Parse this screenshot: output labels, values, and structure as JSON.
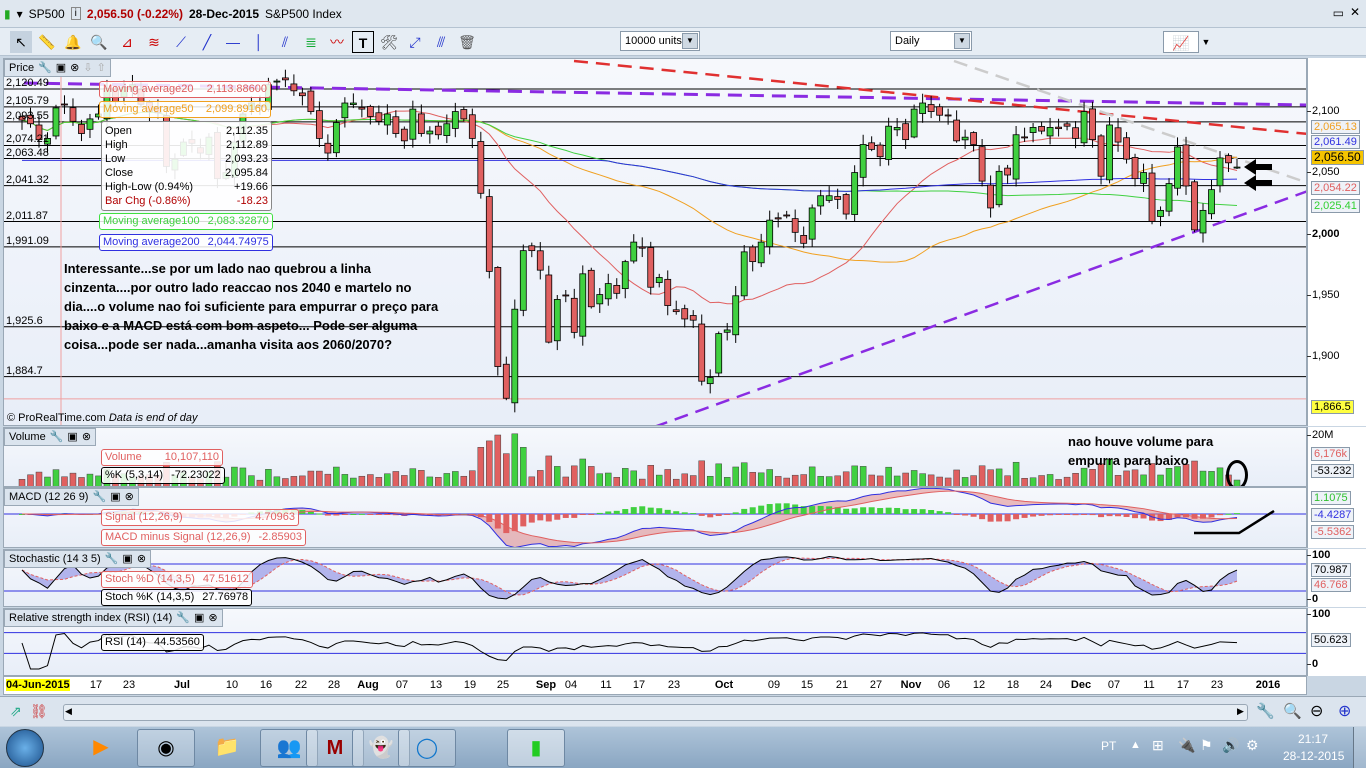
{
  "titlebar": {
    "symbol": "SP500",
    "price": "2,056.50 (-0.22%)",
    "date": "28-Dec-2015",
    "name": "S&P500 Index"
  },
  "toolbar": {
    "units": "10000 units",
    "period": "Daily",
    "tools": [
      "pointer",
      "ruler",
      "alert",
      "zoom",
      "triangle",
      "channel",
      "segment",
      "line",
      "horizontal-line",
      "vertical-line",
      "fibonacci",
      "regression",
      "trend",
      "text",
      "properties",
      "parallel",
      "crosshair",
      "trash"
    ]
  },
  "price_pane": {
    "title": "Price",
    "copyright": "© ProRealTime.com",
    "data_note": "Data is end of day",
    "levels": [
      {
        "label": "2,120.49",
        "value": 2120.49
      },
      {
        "label": "2,105.79",
        "value": 2105.79
      },
      {
        "label": "2,093.55",
        "value": 2093.55
      },
      {
        "label": "2,074.21",
        "value": 2074.21
      },
      {
        "label": "2,063.48",
        "value": 2063.48
      },
      {
        "label": "2,041.32",
        "value": 2041.32
      },
      {
        "label": "2,011.87",
        "value": 2011.87
      },
      {
        "label": "1,991.09",
        "value": 1991.09
      },
      {
        "label": "1,925.6",
        "value": 1925.6
      },
      {
        "label": "1,884.7",
        "value": 1884.7
      }
    ],
    "ma20": {
      "label": "Moving average20",
      "value": "2,113.88600",
      "color": "#e06060"
    },
    "ma50": {
      "label": "Moving average50",
      "value": "2,099.89160",
      "color": "#f0a020"
    },
    "ma100": {
      "label": "Moving average100",
      "value": "2,083.32870",
      "color": "#40d040"
    },
    "ma200": {
      "label": "Moving average200",
      "value": "2,044.74975",
      "color": "#3030e0"
    },
    "ohlc": [
      {
        "k": "Open",
        "v": "2,112.35"
      },
      {
        "k": "High",
        "v": "2,112.89"
      },
      {
        "k": "Low",
        "v": "2,093.23"
      },
      {
        "k": "Close",
        "v": "2,095.84"
      },
      {
        "k": "High-Low (0.94%)",
        "v": "+19.66"
      },
      {
        "k": "Bar Chg (-0.86%)",
        "v": "-18.23"
      }
    ],
    "note": "Interessante...se por um lado nao quebrou a linha cinzenta....por outro lado reaccao nos 2040 e martelo no dia....o volume nao foi suficiente para empurrar o preço para baixo e a MACD está com bom aspeto... Pode ser alguma coisa...pode ser nada...amanha visita aos 2060/2070?",
    "axis": [
      "2,100",
      "2,050",
      "2,000",
      "1,950",
      "1,900"
    ],
    "tags": {
      "ma50": "2,065.13",
      "ma200": "2,061.49",
      "last": "2,056.50",
      "ma20": "2,054.22",
      "ma100": "2,025.41",
      "low": "1,866.5"
    }
  },
  "volume_pane": {
    "title": "Volume",
    "vol_label": "Volume",
    "vol_value": "10,107,110",
    "k_label": "%K (5,3,14)",
    "k_value": "-72.23022",
    "note": "nao houve volume para empurra para baixo",
    "axis": "20M",
    "tag1": "6,176k",
    "tag2": "-53.232"
  },
  "macd_pane": {
    "title": "MACD (12 26 9)",
    "signal_label": "Signal (12,26,9)",
    "signal_value": "4.70963",
    "hist_label": "MACD minus Signal (12,26,9)",
    "hist_value": "-2.85903",
    "tags": [
      "1.1075",
      "-4.4287",
      "-5.5362"
    ]
  },
  "stoch_pane": {
    "title": "Stochastic (14 3 5)",
    "d_label": "Stoch %D (14,3,5)",
    "d_value": "47.51612",
    "k_label": "Stoch %K (14,3,5)",
    "k_value": "27.76978",
    "axis_top": "100",
    "axis_bottom": "0",
    "tags": [
      "70.987",
      "46.768"
    ]
  },
  "rsi_pane": {
    "title": "Relative strength index (RSI) (14)",
    "label": "RSI (14)",
    "value": "44.53560",
    "axis_top": "100",
    "axis_bottom": "0",
    "tag": "50.623"
  },
  "date_axis": [
    "04-Jun-2015",
    "17",
    "23",
    "Jul",
    "10",
    "16",
    "22",
    "28",
    "Aug",
    "07",
    "13",
    "19",
    "25",
    "Sep",
    "04",
    "11",
    "17",
    "23",
    "Oct",
    "09",
    "15",
    "21",
    "27",
    "Nov",
    "06",
    "12",
    "18",
    "24",
    "Dec",
    "07",
    "11",
    "17",
    "23",
    "2016"
  ],
  "chart_data": {
    "type": "candlestick",
    "symbol": "SP500",
    "start": "2015-06-04",
    "end": "2015-12-28",
    "ylim": [
      1860,
      2140
    ],
    "closes": [
      2095,
      2092,
      2079,
      2080,
      2105,
      2108,
      2094,
      2084,
      2096,
      2100,
      2121,
      2110,
      2122,
      2124,
      2108,
      2102,
      2101,
      2057,
      2063,
      2077,
      2076,
      2068,
      2081,
      2047,
      2052,
      2077,
      2100,
      2109,
      2107,
      2124,
      2127,
      2128,
      2119,
      2115,
      2102,
      2080,
      2068,
      2093,
      2109,
      2109,
      2104,
      2098,
      2094,
      2100,
      2084,
      2078,
      2104,
      2084,
      2086,
      2083,
      2092,
      2102,
      2096,
      2080,
      2035,
      1971,
      1893,
      1867,
      1940,
      1988,
      1988,
      1972,
      1913,
      1948,
      1951,
      1921,
      1969,
      1942,
      1952,
      1961,
      1953,
      1979,
      1995,
      1990,
      1958,
      1966,
      1943,
      1938,
      1932,
      1931,
      1881,
      1884,
      1920,
      1923,
      1951,
      1987,
      1979,
      1995,
      2013,
      2014,
      2017,
      2003,
      1994,
      2023,
      2033,
      2033,
      2030,
      2018,
      2052,
      2075,
      2071,
      2065,
      2090,
      2089,
      2079,
      2104,
      2109,
      2102,
      2099,
      2099,
      2078,
      2081,
      2075,
      2045,
      2023,
      2053,
      2050,
      2083,
      2081,
      2089,
      2086,
      2089,
      2088,
      2090,
      2080,
      2102,
      2079,
      2049,
      2091,
      2077,
      2063,
      2047,
      2052,
      2012,
      2021,
      2043,
      2073,
      2041,
      2005,
      2021,
      2038,
      2064,
      2060,
      2056.5
    ]
  },
  "bottom": {
    "lang": "PT",
    "time": "21:17",
    "date": "28-12-2015"
  },
  "taskbar": [
    "windows-media",
    "chrome",
    "explorer",
    "messenger",
    "mcafee",
    "ghostery",
    "circle-app",
    "prorealtime"
  ]
}
